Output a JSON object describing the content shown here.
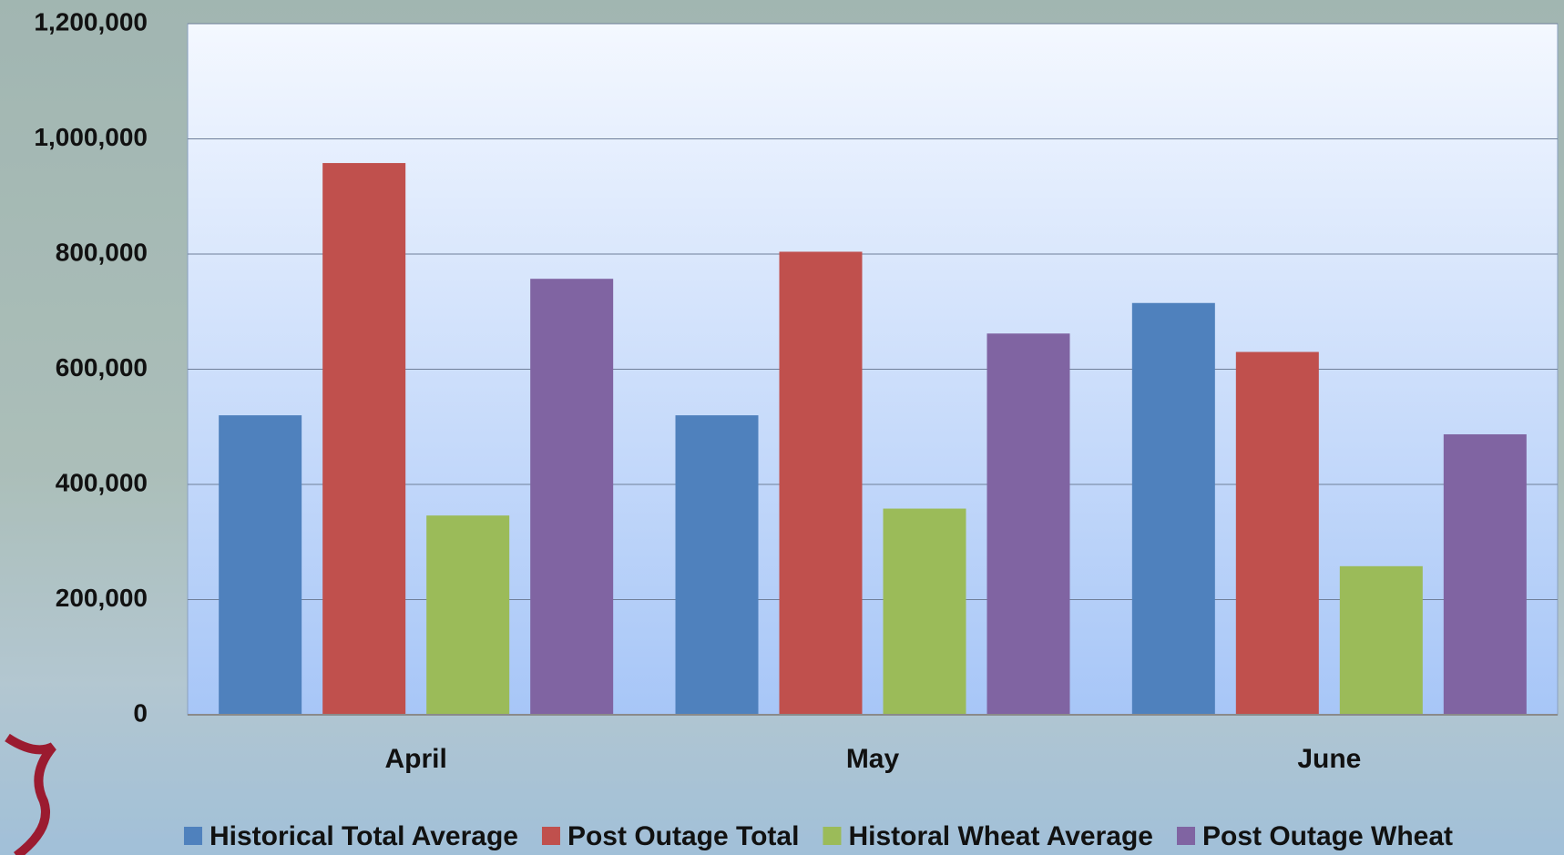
{
  "chart_data": {
    "type": "bar",
    "categories": [
      "April",
      "May",
      "June"
    ],
    "series": [
      {
        "name": "Historical Total Average",
        "color": "#4f81bd",
        "values": [
          520000,
          520000,
          715000
        ]
      },
      {
        "name": "Post Outage Total",
        "color": "#c0504d",
        "values": [
          958000,
          804000,
          630000
        ]
      },
      {
        "name": "Historal Wheat Average",
        "color": "#9bbb59",
        "values": [
          346000,
          358000,
          258000
        ]
      },
      {
        "name": "Post Outage Wheat",
        "color": "#8064a2",
        "values": [
          757000,
          662000,
          487000
        ]
      }
    ],
    "ylim": [
      0,
      1200000
    ],
    "yticks": [
      0,
      {
        "value": 200000,
        "label": "200,000"
      },
      {
        "value": 400000,
        "label": "400,000"
      },
      {
        "value": 600000,
        "label": "600,000"
      },
      {
        "value": 800000,
        "label": "800,000"
      },
      {
        "value": 1000000,
        "label": "1,000,000"
      },
      {
        "value": 1200000,
        "label": "1,200,000"
      }
    ],
    "grid": true,
    "legend": "bottom"
  }
}
